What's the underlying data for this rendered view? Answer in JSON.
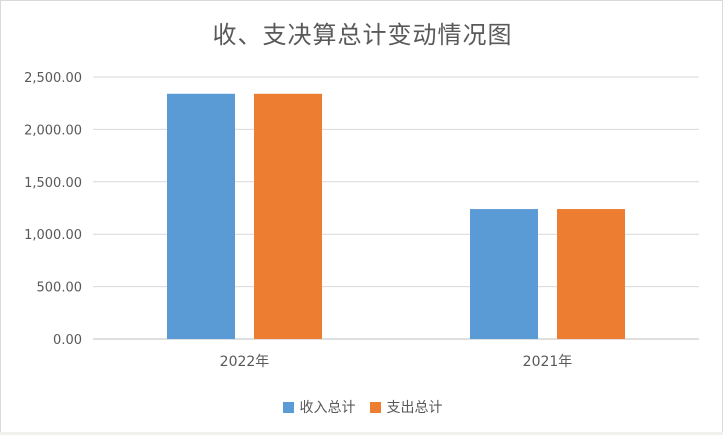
{
  "chart_data": {
    "type": "bar",
    "title": "收、支决算总计变动情况图",
    "categories": [
      "2022年",
      "2021年"
    ],
    "series": [
      {
        "name": "收入总计",
        "color": "#5B9BD5",
        "values": [
          2340,
          1240
        ]
      },
      {
        "name": "支出总计",
        "color": "#ED7D31",
        "values": [
          2340,
          1240
        ]
      }
    ],
    "ylim": [
      0,
      2500
    ],
    "yticks": [
      "0.00",
      "500.00",
      "1,000.00",
      "1,500.00",
      "2,000.00",
      "2,500.00"
    ],
    "ytick_values": [
      0,
      500,
      1000,
      1500,
      2000,
      2500
    ],
    "grid": true,
    "legend_position": "bottom"
  }
}
